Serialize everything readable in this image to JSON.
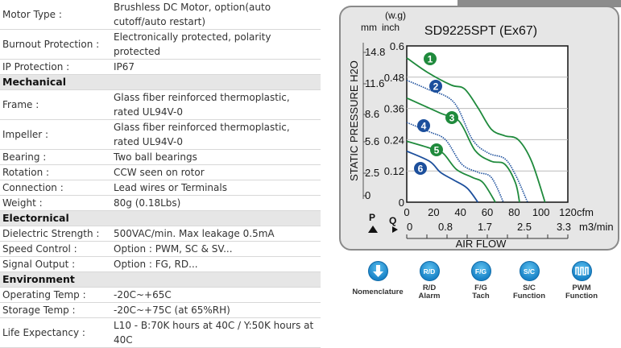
{
  "spec_rows": [
    {
      "type": "row",
      "label": "Motor Type :",
      "value": "Brushless DC Motor, option(auto cutoff/auto restart)",
      "lines": 2
    },
    {
      "type": "row",
      "label": "Burnout Protection :",
      "value": "Electronically protected, polarity protected",
      "lines": 1
    },
    {
      "type": "row",
      "label": "IP Protection :",
      "value": "IP67",
      "lines": 1
    },
    {
      "type": "section",
      "label": "Mechanical"
    },
    {
      "type": "row",
      "label": "Frame :",
      "value": "Glass fiber reinforced thermoplastic, rated UL94V-0",
      "lines": 2
    },
    {
      "type": "row",
      "label": "Impeller :",
      "value": "Glass fiber reinforced thermoplastic, rated UL94V-0",
      "lines": 2
    },
    {
      "type": "row",
      "label": "Bearing :",
      "value": "Two ball bearings",
      "lines": 1
    },
    {
      "type": "row",
      "label": "Rotation :",
      "value": "CCW seen on rotor",
      "lines": 1
    },
    {
      "type": "row",
      "label": "Connection :",
      "value": "Lead wires or Terminals",
      "lines": 1
    },
    {
      "type": "row",
      "label": "Weight :",
      "value": "80g (0.18Lbs)",
      "lines": 1
    },
    {
      "type": "section",
      "label": "Electornical"
    },
    {
      "type": "row",
      "label": "Dielectric Strength :",
      "value": "500VAC/min. Max leakage 0.5mA",
      "lines": 1
    },
    {
      "type": "row",
      "label": "Speed Control :",
      "value": "Option : PWM, SC & SV...",
      "lines": 1
    },
    {
      "type": "row",
      "label": "Signal Output :",
      "value": "Option : FG, RD...",
      "lines": 1
    },
    {
      "type": "section",
      "label": "Environment"
    },
    {
      "type": "row",
      "label": "Operating Temp :",
      "value": "-20C~+65C",
      "lines": 1
    },
    {
      "type": "row",
      "label": "Storage Temp :",
      "value": "-20C~+75C (at 65%RH)",
      "lines": 1
    },
    {
      "type": "row",
      "label": "Life Expectancy :",
      "value": "L10 - B:70K hours at 40C / Y:50K hours at 40C",
      "lines": 2
    }
  ],
  "chart_data": {
    "type": "line",
    "title": "SD9225SPT (Ex67)",
    "ylabel": "STATIC PRESSURE H2O",
    "xlabel": "AIR FLOW",
    "y_units_header": "(w.g)",
    "y_units": [
      "mm",
      "inch"
    ],
    "x_unit": "cfm",
    "x2_unit": "m3/min",
    "p_label": "P",
    "q_label": "Q",
    "xlim": [
      0,
      120
    ],
    "ylim": [
      0,
      0.6
    ],
    "x_ticks": [
      "0",
      "20",
      "40",
      "60",
      "80",
      "100",
      "120"
    ],
    "x2_ticks": [
      "0",
      "0.8",
      "1.7",
      "2.5",
      "3.3"
    ],
    "y_ticks": [
      "0",
      "0.12",
      "0.24",
      "0.36",
      "0.48",
      "0.6"
    ],
    "y_mm_ticks": [
      "0",
      "2.5",
      "5.6",
      "8.6",
      "11.6",
      "14.8"
    ],
    "grid": true,
    "colors": {
      "green": "#1f8a3c",
      "blue": "#1c4f9c"
    },
    "series": [
      {
        "name": "1",
        "color": "green",
        "style": "solid",
        "points": [
          [
            0,
            0.554
          ],
          [
            15,
            0.5
          ],
          [
            33,
            0.45
          ],
          [
            43,
            0.435
          ],
          [
            53,
            0.363
          ],
          [
            63,
            0.28
          ],
          [
            73,
            0.255
          ],
          [
            83,
            0.24
          ],
          [
            93,
            0.157
          ],
          [
            103,
            0
          ]
        ]
      },
      {
        "name": "2",
        "color": "blue",
        "style": "dotted",
        "points": [
          [
            0,
            0.468
          ],
          [
            15,
            0.435
          ],
          [
            35,
            0.384
          ],
          [
            49,
            0.24
          ],
          [
            61,
            0.188
          ],
          [
            73,
            0.167
          ],
          [
            81,
            0.105
          ],
          [
            90,
            0
          ]
        ]
      },
      {
        "name": "3",
        "color": "green",
        "style": "solid",
        "points": [
          [
            0,
            0.4
          ],
          [
            25,
            0.342
          ],
          [
            39,
            0.311
          ],
          [
            51,
            0.198
          ],
          [
            63,
            0.157
          ],
          [
            73,
            0.146
          ],
          [
            81,
            0.074
          ],
          [
            84,
            0
          ]
        ]
      },
      {
        "name": "4",
        "color": "blue",
        "style": "dotted",
        "points": [
          [
            0,
            0.306
          ],
          [
            17,
            0.27
          ],
          [
            29,
            0.239
          ],
          [
            41,
            0.146
          ],
          [
            53,
            0.115
          ],
          [
            63,
            0.095
          ],
          [
            72,
            0
          ]
        ]
      },
      {
        "name": "5",
        "color": "green",
        "style": "solid",
        "points": [
          [
            0,
            0.234
          ],
          [
            17,
            0.208
          ],
          [
            27,
            0.188
          ],
          [
            37,
            0.126
          ],
          [
            49,
            0.095
          ],
          [
            57,
            0.074
          ],
          [
            66,
            0
          ]
        ]
      },
      {
        "name": "6",
        "color": "blue",
        "style": "solid",
        "points": [
          [
            0,
            0.196
          ],
          [
            17,
            0.157
          ],
          [
            25,
            0.115
          ],
          [
            35,
            0.085
          ],
          [
            45,
            0.054
          ],
          [
            53,
            0
          ]
        ]
      }
    ]
  },
  "feature_icons": [
    {
      "glyph": "arrow-down",
      "line1": "Nomenclature",
      "line2": ""
    },
    {
      "glyph": "R/D",
      "line1": "R/D",
      "line2": "Alarm"
    },
    {
      "glyph": "F/G",
      "line1": "F/G",
      "line2": "Tach"
    },
    {
      "glyph": "S/C",
      "line1": "S/C",
      "line2": "Function"
    },
    {
      "glyph": "pwm-wave",
      "line1": "PWM",
      "line2": "Function"
    }
  ]
}
